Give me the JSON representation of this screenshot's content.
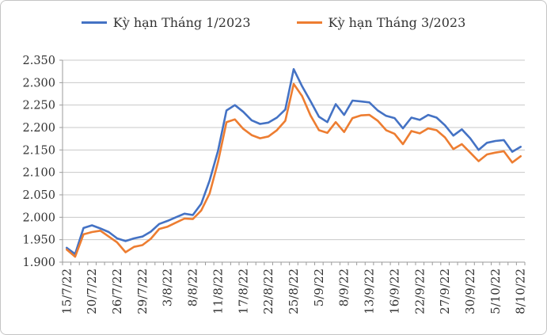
{
  "window": {
    "background": "#FFFFFF",
    "border_color": "#C4C4C4"
  },
  "legend": {
    "position": "top",
    "items": [
      {
        "label": "Kỳ hạn Tháng 1/2023",
        "color": "#4472C4"
      },
      {
        "label": "Kỳ hạn Tháng 3/2023",
        "color": "#ED7D31"
      }
    ]
  },
  "chart_data": {
    "type": "line",
    "title": "",
    "grid": true,
    "legend_position": "top",
    "ylim": [
      1.9,
      2.35
    ],
    "ytick_step": 0.05,
    "ytick_labels_top_to_bottom": [
      "2.350",
      "2.300",
      "2.250",
      "2.200",
      "2.150",
      "2.100",
      "2.050",
      "2.000",
      "1.950",
      "1.900"
    ],
    "x_tick_labels": [
      "15/7/22",
      "20/7/22",
      "26/7/22",
      "29/7/22",
      "3/8/22",
      "8/8/22",
      "11/8/22",
      "17/8/22",
      "22/8/22",
      "25/8/22",
      "5/9/22",
      "8/9/22",
      "13/9/22",
      "16/9/22",
      "22/9/22",
      "27/9/22",
      "30/9/22",
      "5/10/22",
      "8/10/22"
    ],
    "label_interval": 3,
    "n_points": 55,
    "gridline_color": "#C8C8C8",
    "axis_color": "#9B9B9B",
    "text_color": "#333333",
    "series": [
      {
        "name": "Kỳ hạn Tháng 1/2023",
        "color": "#4472C4",
        "values": [
          1.932,
          1.918,
          1.976,
          1.982,
          1.975,
          1.967,
          1.953,
          1.947,
          1.953,
          1.957,
          1.968,
          1.985,
          1.992,
          2.0,
          2.008,
          2.005,
          2.03,
          2.082,
          2.148,
          2.238,
          2.25,
          2.235,
          2.216,
          2.208,
          2.211,
          2.222,
          2.24,
          2.33,
          2.292,
          2.259,
          2.224,
          2.212,
          2.252,
          2.228,
          2.26,
          2.258,
          2.256,
          2.238,
          2.226,
          2.221,
          2.198,
          2.222,
          2.217,
          2.228,
          2.222,
          2.205,
          2.182,
          2.196,
          2.176,
          2.15,
          2.166,
          2.17,
          2.172,
          2.146,
          2.157
        ]
      },
      {
        "name": "Kỳ hạn Tháng 3/2023",
        "color": "#ED7D31",
        "values": [
          1.928,
          1.912,
          1.962,
          1.967,
          1.97,
          1.957,
          1.944,
          1.922,
          1.934,
          1.938,
          1.952,
          1.974,
          1.979,
          1.988,
          1.997,
          1.996,
          2.015,
          2.053,
          2.123,
          2.212,
          2.218,
          2.197,
          2.183,
          2.176,
          2.18,
          2.194,
          2.215,
          2.297,
          2.27,
          2.227,
          2.194,
          2.188,
          2.212,
          2.19,
          2.221,
          2.227,
          2.228,
          2.215,
          2.194,
          2.186,
          2.163,
          2.192,
          2.187,
          2.198,
          2.194,
          2.178,
          2.152,
          2.163,
          2.144,
          2.125,
          2.14,
          2.144,
          2.147,
          2.122,
          2.136
        ]
      }
    ]
  }
}
